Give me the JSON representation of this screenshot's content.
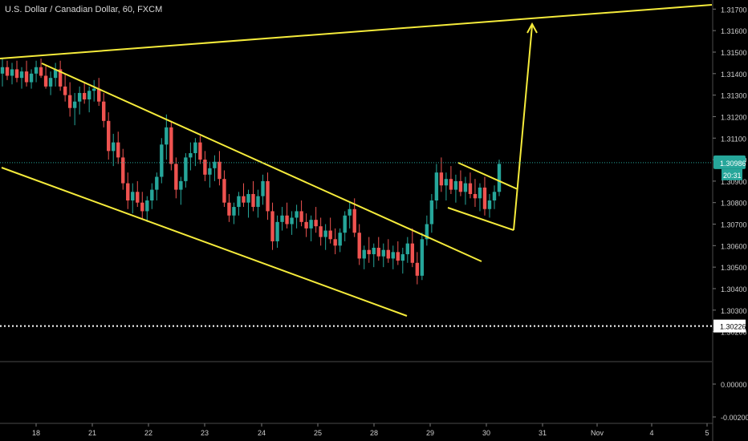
{
  "header": {
    "title": "U.S. Dollar / Canadian Dollar, 60, FXCM"
  },
  "colors": {
    "background": "#000000",
    "up": "#26a69a",
    "down": "#ef5350",
    "trendline": "#f5eb3b",
    "price_line": "#26a69a",
    "axis_text": "#cfcfcf",
    "pane_border": "#4a4a4a"
  },
  "icons": {
    "arrow": "arrow-up-icon"
  },
  "chart_data": {
    "type": "candlestick",
    "title": "U.S. Dollar / Canadian Dollar, 60, FXCM",
    "y_axis": {
      "ticks": [
        "1.31700",
        "1.31600",
        "1.31500",
        "1.31400",
        "1.31300",
        "1.31200",
        "1.31100",
        "1.31000",
        "1.30900",
        "1.30800",
        "1.30700",
        "1.30600",
        "1.30500",
        "1.30400",
        "1.30300",
        "1.30200"
      ],
      "ylim": [
        1.3015,
        1.3172
      ]
    },
    "x_axis": {
      "ticks": [
        "18",
        "21",
        "22",
        "23",
        "24",
        "25",
        "28",
        "29",
        "30",
        "31",
        "Nov",
        "4",
        "5"
      ]
    },
    "current_price": {
      "value": "1.30986",
      "countdown": "20:31"
    },
    "horizontal_line": {
      "value": "1.30226"
    },
    "lower_pane": {
      "ticks": [
        "0.00000",
        "-0.00200"
      ]
    },
    "candles_ohlc": [
      [
        1.314,
        1.3147,
        1.3134,
        1.3143
      ],
      [
        1.3143,
        1.3146,
        1.3137,
        1.3139
      ],
      [
        1.3139,
        1.3145,
        1.3135,
        1.3142
      ],
      [
        1.3142,
        1.3146,
        1.3136,
        1.3138
      ],
      [
        1.3138,
        1.3143,
        1.3133,
        1.3141
      ],
      [
        1.3141,
        1.3146,
        1.3134,
        1.3136
      ],
      [
        1.3136,
        1.3142,
        1.3133,
        1.314
      ],
      [
        1.314,
        1.3146,
        1.3136,
        1.3143
      ],
      [
        1.3143,
        1.3147,
        1.3138,
        1.3139
      ],
      [
        1.3139,
        1.3144,
        1.3133,
        1.3134
      ],
      [
        1.3134,
        1.3141,
        1.313,
        1.3138
      ],
      [
        1.3138,
        1.3145,
        1.3134,
        1.3142
      ],
      [
        1.3142,
        1.3146,
        1.3132,
        1.3134
      ],
      [
        1.3134,
        1.314,
        1.3127,
        1.313
      ],
      [
        1.313,
        1.3136,
        1.312,
        1.3124
      ],
      [
        1.3124,
        1.3131,
        1.3116,
        1.3127
      ],
      [
        1.3127,
        1.3134,
        1.3121,
        1.3131
      ],
      [
        1.3131,
        1.3136,
        1.3126,
        1.3128
      ],
      [
        1.3128,
        1.3134,
        1.3122,
        1.3132
      ],
      [
        1.3132,
        1.3137,
        1.3127,
        1.3133
      ],
      [
        1.3133,
        1.3138,
        1.3125,
        1.3127
      ],
      [
        1.3127,
        1.3131,
        1.3115,
        1.3118
      ],
      [
        1.3118,
        1.3122,
        1.31,
        1.3104
      ],
      [
        1.3104,
        1.3112,
        1.3097,
        1.3108
      ],
      [
        1.3108,
        1.3113,
        1.3098,
        1.3101
      ],
      [
        1.3101,
        1.3105,
        1.3086,
        1.3089
      ],
      [
        1.3089,
        1.3094,
        1.3077,
        1.3081
      ],
      [
        1.3081,
        1.3089,
        1.3075,
        1.3085
      ],
      [
        1.3085,
        1.309,
        1.3078,
        1.308
      ],
      [
        1.308,
        1.3085,
        1.3072,
        1.3076
      ],
      [
        1.3076,
        1.3083,
        1.3071,
        1.3081
      ],
      [
        1.3081,
        1.3089,
        1.3077,
        1.3086
      ],
      [
        1.3086,
        1.3094,
        1.3081,
        1.3092
      ],
      [
        1.3092,
        1.311,
        1.3089,
        1.3107
      ],
      [
        1.3107,
        1.3121,
        1.31,
        1.3115
      ],
      [
        1.3115,
        1.3118,
        1.3095,
        1.3098
      ],
      [
        1.3098,
        1.3101,
        1.3082,
        1.3086
      ],
      [
        1.3086,
        1.3092,
        1.3079,
        1.309
      ],
      [
        1.309,
        1.3103,
        1.3087,
        1.3101
      ],
      [
        1.3101,
        1.3108,
        1.3095,
        1.3103
      ],
      [
        1.3103,
        1.311,
        1.3097,
        1.3108
      ],
      [
        1.3108,
        1.3111,
        1.3098,
        1.31
      ],
      [
        1.31,
        1.3104,
        1.309,
        1.3093
      ],
      [
        1.3093,
        1.3099,
        1.3087,
        1.3096
      ],
      [
        1.3096,
        1.3102,
        1.309,
        1.3099
      ],
      [
        1.3099,
        1.3104,
        1.3088,
        1.3091
      ],
      [
        1.3091,
        1.3095,
        1.3078,
        1.308
      ],
      [
        1.308,
        1.3084,
        1.3071,
        1.3074
      ],
      [
        1.3074,
        1.308,
        1.307,
        1.3078
      ],
      [
        1.3078,
        1.3085,
        1.3074,
        1.3083
      ],
      [
        1.3083,
        1.3089,
        1.3078,
        1.308
      ],
      [
        1.308,
        1.3086,
        1.3073,
        1.3084
      ],
      [
        1.3084,
        1.309,
        1.3076,
        1.3078
      ],
      [
        1.3078,
        1.3086,
        1.3073,
        1.3083
      ],
      [
        1.3083,
        1.3093,
        1.3079,
        1.309
      ],
      [
        1.309,
        1.3094,
        1.3072,
        1.3076
      ],
      [
        1.3076,
        1.308,
        1.3058,
        1.3062
      ],
      [
        1.3062,
        1.3074,
        1.3059,
        1.3071
      ],
      [
        1.3071,
        1.3078,
        1.3067,
        1.3074
      ],
      [
        1.3074,
        1.308,
        1.3068,
        1.307
      ],
      [
        1.307,
        1.3076,
        1.3065,
        1.3073
      ],
      [
        1.3073,
        1.3079,
        1.3068,
        1.3076
      ],
      [
        1.3076,
        1.3081,
        1.3069,
        1.3071
      ],
      [
        1.3071,
        1.3075,
        1.3064,
        1.3068
      ],
      [
        1.3068,
        1.3074,
        1.3062,
        1.3072
      ],
      [
        1.3072,
        1.3078,
        1.3066,
        1.3069
      ],
      [
        1.3069,
        1.3073,
        1.306,
        1.3064
      ],
      [
        1.3064,
        1.307,
        1.3058,
        1.3067
      ],
      [
        1.3067,
        1.3073,
        1.3061,
        1.3063
      ],
      [
        1.3063,
        1.3068,
        1.3056,
        1.306
      ],
      [
        1.306,
        1.3068,
        1.3057,
        1.3066
      ],
      [
        1.3066,
        1.3076,
        1.3062,
        1.3074
      ],
      [
        1.3074,
        1.308,
        1.3068,
        1.3077
      ],
      [
        1.3077,
        1.3082,
        1.3064,
        1.3066
      ],
      [
        1.3066,
        1.307,
        1.3051,
        1.3054
      ],
      [
        1.3054,
        1.306,
        1.3049,
        1.3058
      ],
      [
        1.3058,
        1.3064,
        1.3052,
        1.3056
      ],
      [
        1.3056,
        1.3061,
        1.305,
        1.3059
      ],
      [
        1.3059,
        1.3064,
        1.3053,
        1.3055
      ],
      [
        1.3055,
        1.3061,
        1.305,
        1.3058
      ],
      [
        1.3058,
        1.3063,
        1.3052,
        1.3054
      ],
      [
        1.3054,
        1.306,
        1.3049,
        1.3057
      ],
      [
        1.3057,
        1.3062,
        1.3051,
        1.3053
      ],
      [
        1.3053,
        1.3059,
        1.3047,
        1.3056
      ],
      [
        1.3056,
        1.3064,
        1.3052,
        1.3061
      ],
      [
        1.3061,
        1.3068,
        1.305,
        1.3052
      ],
      [
        1.3052,
        1.3057,
        1.3042,
        1.3046
      ],
      [
        1.3046,
        1.3066,
        1.3044,
        1.3063
      ],
      [
        1.3063,
        1.3074,
        1.306,
        1.307
      ],
      [
        1.307,
        1.3084,
        1.3066,
        1.3081
      ],
      [
        1.3081,
        1.3098,
        1.3077,
        1.3094
      ],
      [
        1.3094,
        1.3101,
        1.3085,
        1.3088
      ],
      [
        1.3088,
        1.3094,
        1.3081,
        1.3091
      ],
      [
        1.3091,
        1.3097,
        1.3084,
        1.3086
      ],
      [
        1.3086,
        1.3093,
        1.308,
        1.309
      ],
      [
        1.309,
        1.3095,
        1.3083,
        1.3085
      ],
      [
        1.3085,
        1.3092,
        1.3079,
        1.3089
      ],
      [
        1.3089,
        1.3094,
        1.3082,
        1.3084
      ],
      [
        1.3084,
        1.3091,
        1.3078,
        1.3082
      ],
      [
        1.3082,
        1.3089,
        1.3076,
        1.3087
      ],
      [
        1.3087,
        1.3092,
        1.3074,
        1.3077
      ],
      [
        1.3077,
        1.3084,
        1.3073,
        1.3081
      ],
      [
        1.3081,
        1.3088,
        1.3077,
        1.3085
      ],
      [
        1.3085,
        1.31,
        1.3083,
        1.3098
      ]
    ],
    "trendlines": [
      {
        "name": "channel-top",
        "points": [
          [
            "18",
            1.3145
          ],
          [
            "28",
            1.3068
          ]
        ]
      },
      {
        "name": "channel-bottom",
        "points": [
          [
            "18",
            1.31
          ],
          [
            "28",
            1.3033
          ]
        ]
      },
      {
        "name": "long-resistance",
        "points": [
          [
            "18",
            1.3147
          ],
          [
            "5",
            1.317
          ]
        ]
      },
      {
        "name": "flag-top",
        "points": [
          [
            "29",
            1.31
          ],
          [
            "30",
            1.309
          ]
        ]
      },
      {
        "name": "flag-bottom",
        "points": [
          [
            "29",
            1.3081
          ],
          [
            "30",
            1.3072
          ]
        ]
      },
      {
        "name": "projection-arrow",
        "points": [
          [
            "30",
            1.3072
          ],
          [
            "31",
            1.3162
          ]
        ]
      }
    ]
  }
}
